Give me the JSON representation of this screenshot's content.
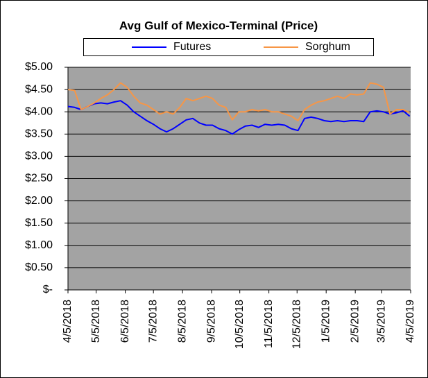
{
  "chart_data": {
    "type": "line",
    "title": "Avg Gulf of Mexico-Terminal (Price)",
    "x": [
      "4/5/2018",
      "4/12/2018",
      "4/19/2018",
      "4/26/2018",
      "5/3/2018",
      "5/10/2018",
      "5/17/2018",
      "5/24/2018",
      "5/31/2018",
      "6/7/2018",
      "6/14/2018",
      "6/21/2018",
      "6/28/2018",
      "7/5/2018",
      "7/12/2018",
      "7/19/2018",
      "7/26/2018",
      "8/2/2018",
      "8/9/2018",
      "8/16/2018",
      "8/23/2018",
      "8/30/2018",
      "9/6/2018",
      "9/13/2018",
      "9/20/2018",
      "9/27/2018",
      "10/4/2018",
      "10/11/2018",
      "10/18/2018",
      "10/25/2018",
      "11/1/2018",
      "11/8/2018",
      "11/15/2018",
      "11/22/2018",
      "11/29/2018",
      "12/6/2018",
      "12/13/2018",
      "12/20/2018",
      "12/27/2018",
      "1/3/2019",
      "1/10/2019",
      "1/17/2019",
      "1/24/2019",
      "1/31/2019",
      "2/7/2019",
      "2/14/2019",
      "2/21/2019",
      "2/28/2019",
      "3/7/2019",
      "3/14/2019",
      "3/21/2019",
      "3/28/2019",
      "4/4/2019"
    ],
    "series": [
      {
        "name": "Futures",
        "color": "#0000ff",
        "values": [
          4.12,
          4.1,
          4.05,
          4.12,
          4.18,
          4.2,
          4.18,
          4.22,
          4.25,
          4.15,
          4.0,
          3.9,
          3.8,
          3.72,
          3.62,
          3.55,
          3.62,
          3.72,
          3.82,
          3.85,
          3.75,
          3.7,
          3.7,
          3.62,
          3.58,
          3.5,
          3.6,
          3.68,
          3.7,
          3.65,
          3.72,
          3.7,
          3.72,
          3.7,
          3.62,
          3.58,
          3.85,
          3.88,
          3.85,
          3.8,
          3.78,
          3.8,
          3.78,
          3.8,
          3.8,
          3.78,
          4.0,
          4.02,
          4.0,
          3.95,
          3.98,
          4.02,
          3.9
        ]
      },
      {
        "name": "Sorghum",
        "color": "#f79646",
        "values": [
          4.5,
          4.48,
          4.05,
          4.12,
          4.2,
          4.3,
          4.38,
          4.5,
          4.65,
          4.55,
          4.35,
          4.2,
          4.15,
          4.05,
          3.95,
          4.0,
          3.95,
          4.1,
          4.3,
          4.25,
          4.3,
          4.35,
          4.3,
          4.15,
          4.1,
          3.82,
          4.0,
          4.0,
          4.05,
          4.02,
          4.05,
          4.0,
          4.0,
          3.95,
          3.9,
          3.8,
          4.05,
          4.15,
          4.22,
          4.25,
          4.3,
          4.35,
          4.3,
          4.4,
          4.38,
          4.4,
          4.65,
          4.62,
          4.55,
          3.95,
          4.05,
          4.05,
          3.98
        ]
      }
    ],
    "xlim": [
      "4/5/2018",
      "4/5/2019"
    ],
    "xticks": [
      "4/5/2018",
      "5/5/2018",
      "6/5/2018",
      "7/5/2018",
      "8/5/2018",
      "9/5/2018",
      "10/5/2018",
      "11/5/2018",
      "12/5/2018",
      "1/5/2019",
      "2/5/2019",
      "3/5/2019",
      "4/5/2019"
    ],
    "ylim": [
      0,
      5
    ],
    "yticks": [
      {
        "value": 0,
        "label": "$-"
      },
      {
        "value": 0.5,
        "label": "$0.50"
      },
      {
        "value": 1,
        "label": "$1.00"
      },
      {
        "value": 1.5,
        "label": "$1.50"
      },
      {
        "value": 2,
        "label": "$2.00"
      },
      {
        "value": 2.5,
        "label": "$2.50"
      },
      {
        "value": 3,
        "label": "$3.00"
      },
      {
        "value": 3.5,
        "label": "$3.50"
      },
      {
        "value": 4,
        "label": "$4.00"
      },
      {
        "value": 4.5,
        "label": "$4.50"
      },
      {
        "value": 5,
        "label": "$5.00"
      }
    ],
    "grid": true,
    "plot_background": "#a3a3a3",
    "legend": "top"
  }
}
